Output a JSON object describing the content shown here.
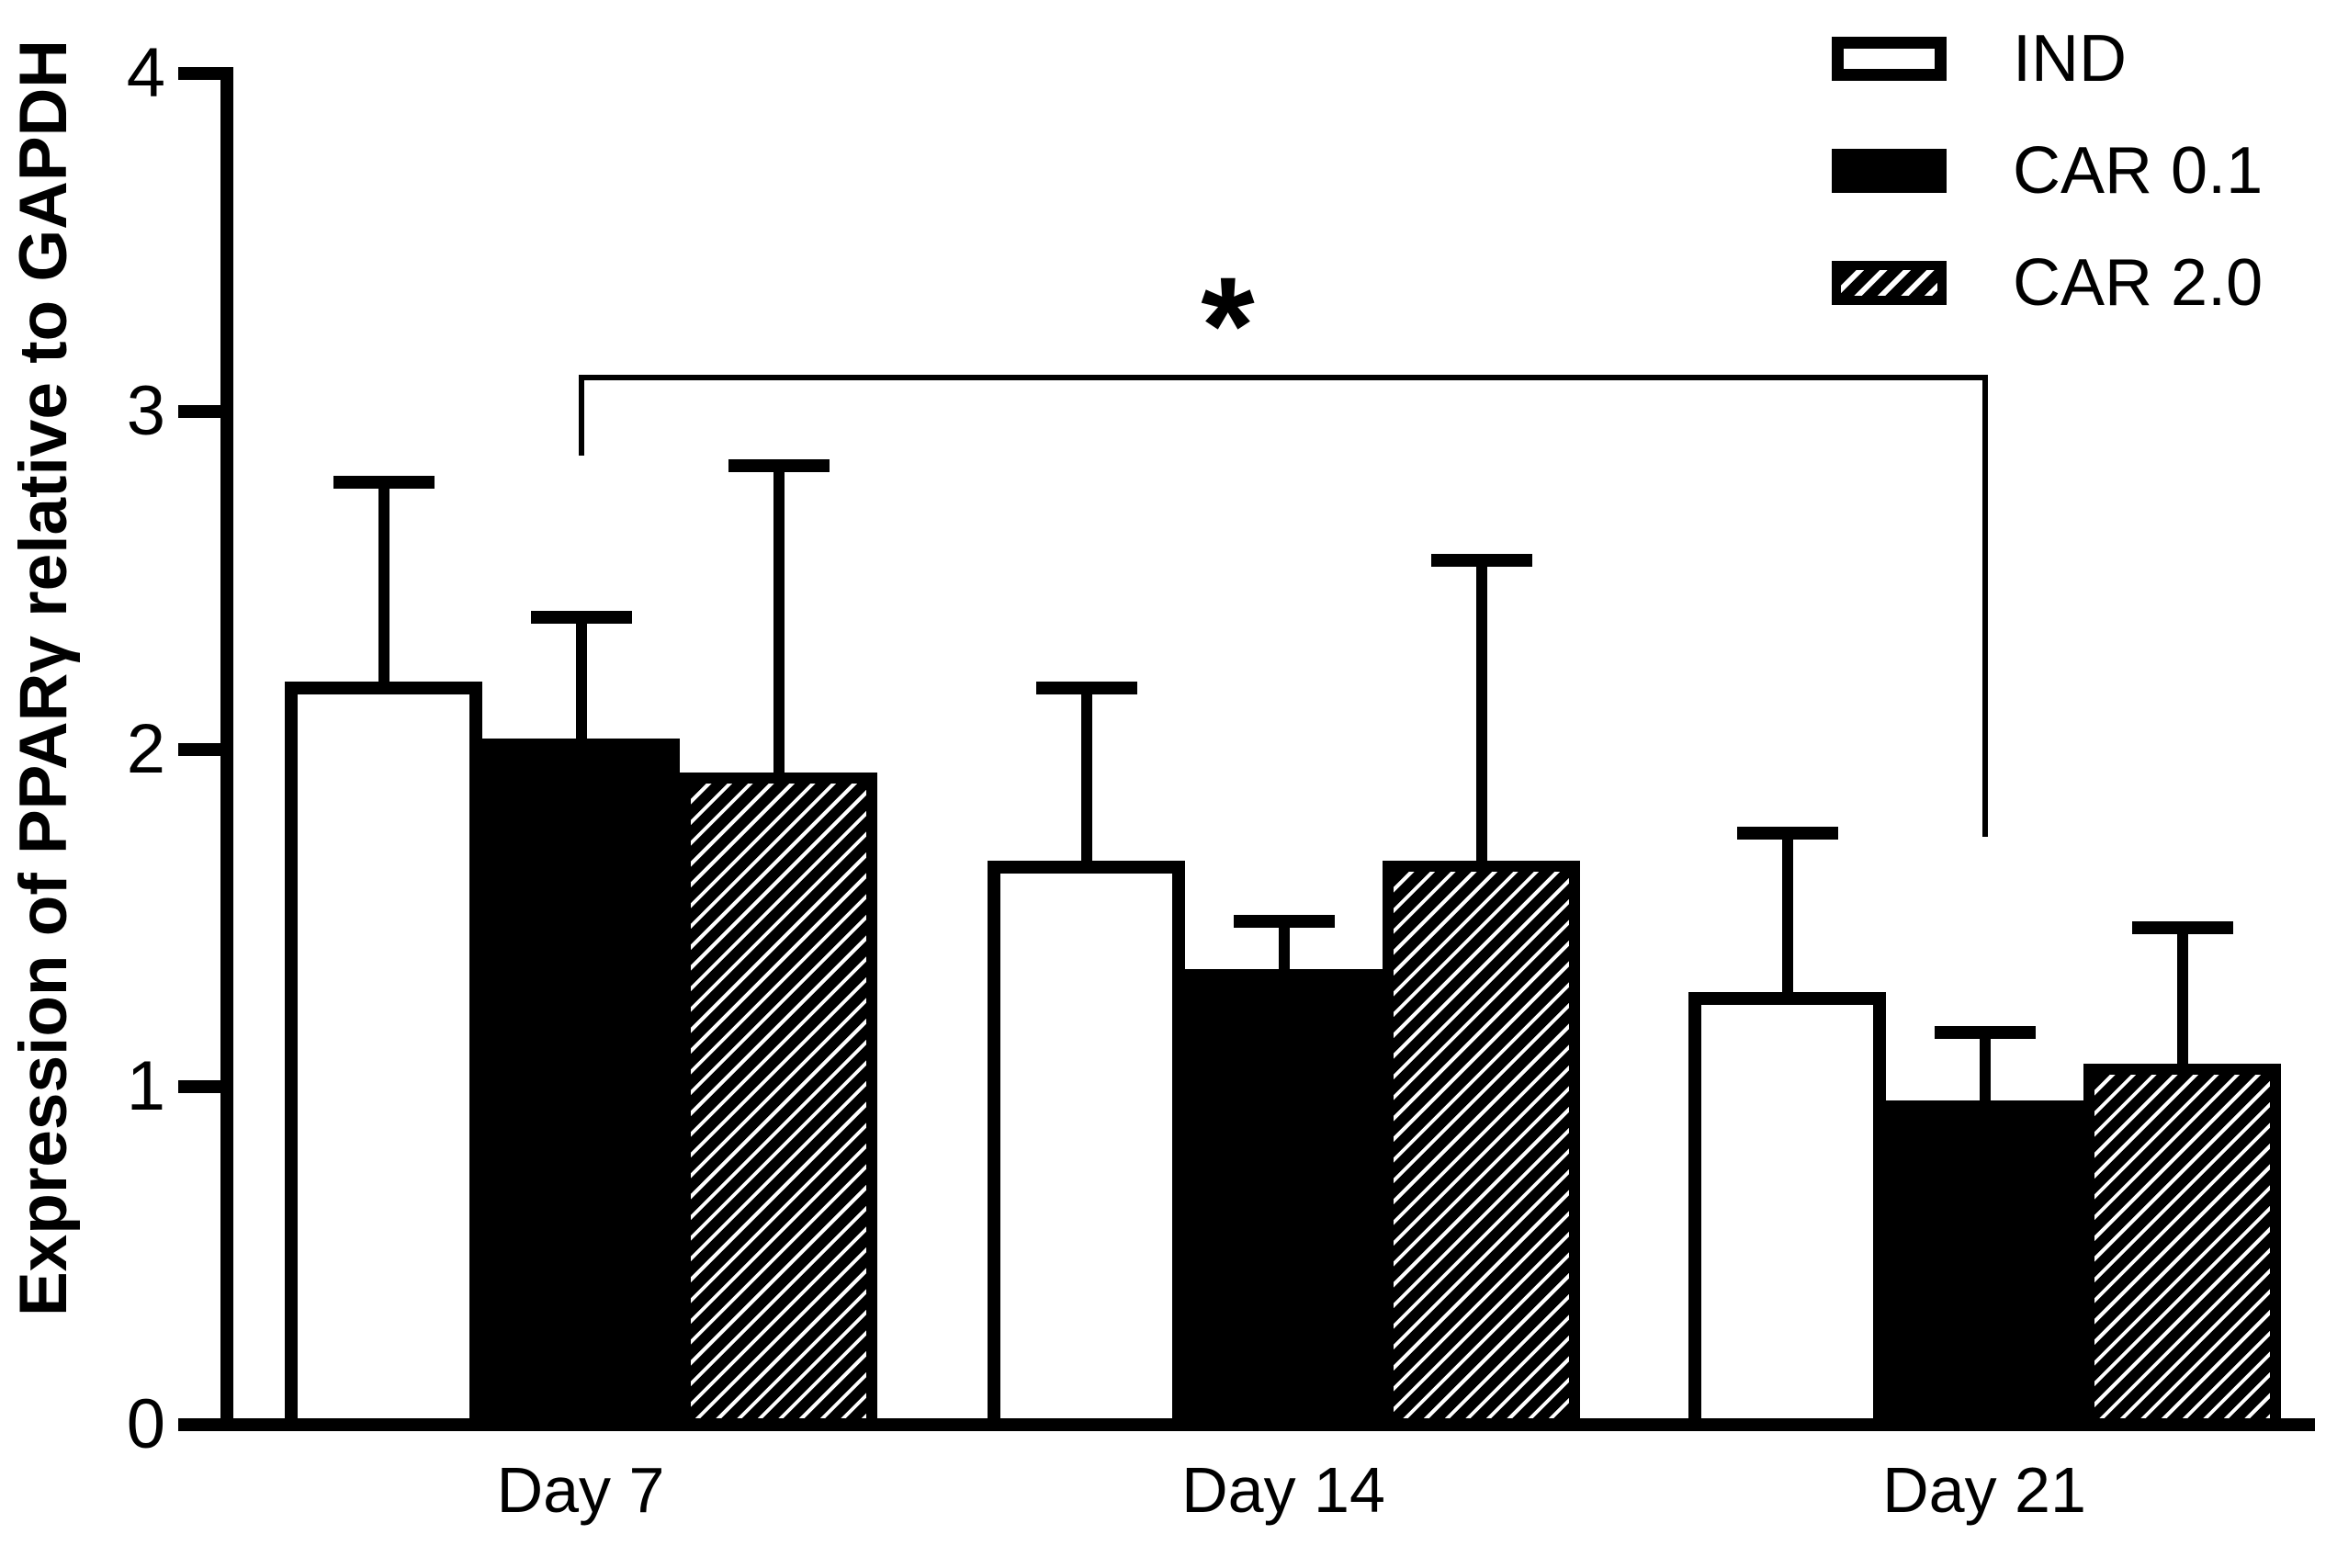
{
  "figure": {
    "background_color": "#ffffff",
    "ink_color": "#000000"
  },
  "chart_data": {
    "type": "bar",
    "title": "",
    "xlabel": "",
    "ylabel": "Expression of PPARγ relative to GAPDH",
    "categories": [
      "Day 7",
      "Day 14",
      "Day 21"
    ],
    "yticks": [
      "4",
      "3",
      "2",
      "1",
      "0"
    ],
    "ylim": [
      0,
      4
    ],
    "grid": false,
    "legend_position": "top-right",
    "error_bars": "upper_only",
    "series": [
      {
        "name": "IND",
        "fill": "outline",
        "values": [
          2.2,
          1.67,
          1.28
        ],
        "errors": [
          0.59,
          0.51,
          0.47
        ]
      },
      {
        "name": "CAR 0.1",
        "fill": "solid",
        "values": [
          2.03,
          1.35,
          0.96
        ],
        "errors": [
          0.36,
          0.14,
          0.2
        ]
      },
      {
        "name": "CAR 2.0",
        "fill": "hatch",
        "values": [
          1.93,
          1.67,
          1.07
        ],
        "errors": [
          0.91,
          0.89,
          0.4
        ]
      }
    ],
    "significance": {
      "label": "*",
      "from": {
        "category": "Day 7",
        "series": "CAR 0.1"
      },
      "to": {
        "category": "Day 21",
        "series": "CAR 0.1"
      },
      "bar_value": 3.1,
      "left_drop_to": 2.87,
      "right_drop_to": 1.74
    }
  }
}
